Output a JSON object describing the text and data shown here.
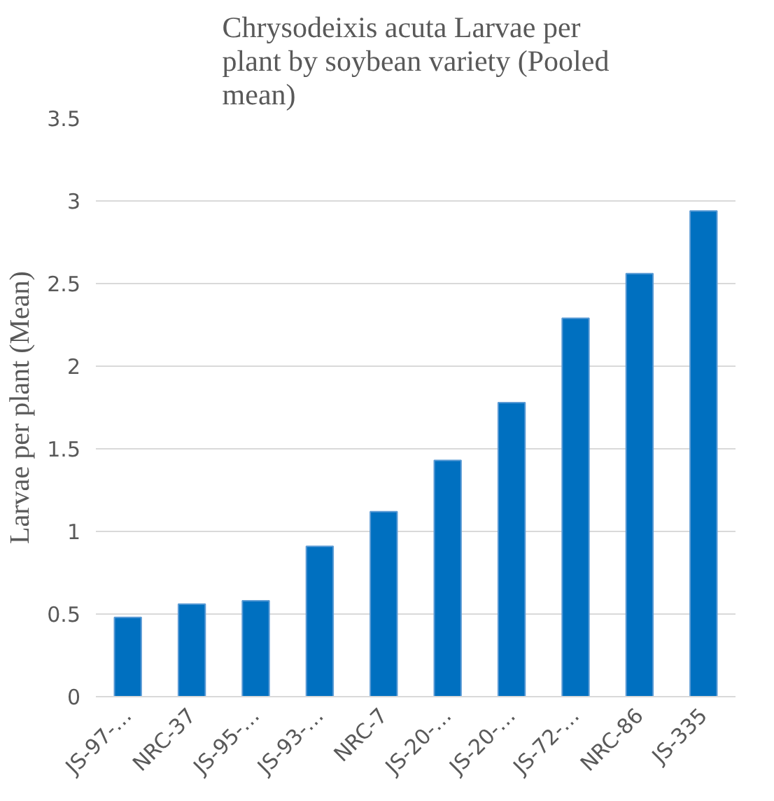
{
  "chart_data": {
    "type": "bar",
    "title": "Chrysodeixis acuta Larvae per plant by soybean variety (Pooled mean)",
    "ylabel": "Larvae per plant (Mean)",
    "categories": [
      "JS-97-…",
      "NRC-37",
      "JS-95-…",
      "JS-93-…",
      "NRC-7",
      "JS-20-…",
      "JS-20-…",
      "JS-72-…",
      "NRC-86",
      "JS-335"
    ],
    "values": [
      0.48,
      0.56,
      0.58,
      0.91,
      1.12,
      1.43,
      1.78,
      2.29,
      2.56,
      2.94
    ],
    "color": "#0070c0",
    "ylim": [
      0,
      3.5
    ],
    "yticks": [
      0,
      0.5,
      1,
      1.5,
      2,
      2.5,
      3,
      3.5
    ],
    "grid": "y"
  }
}
